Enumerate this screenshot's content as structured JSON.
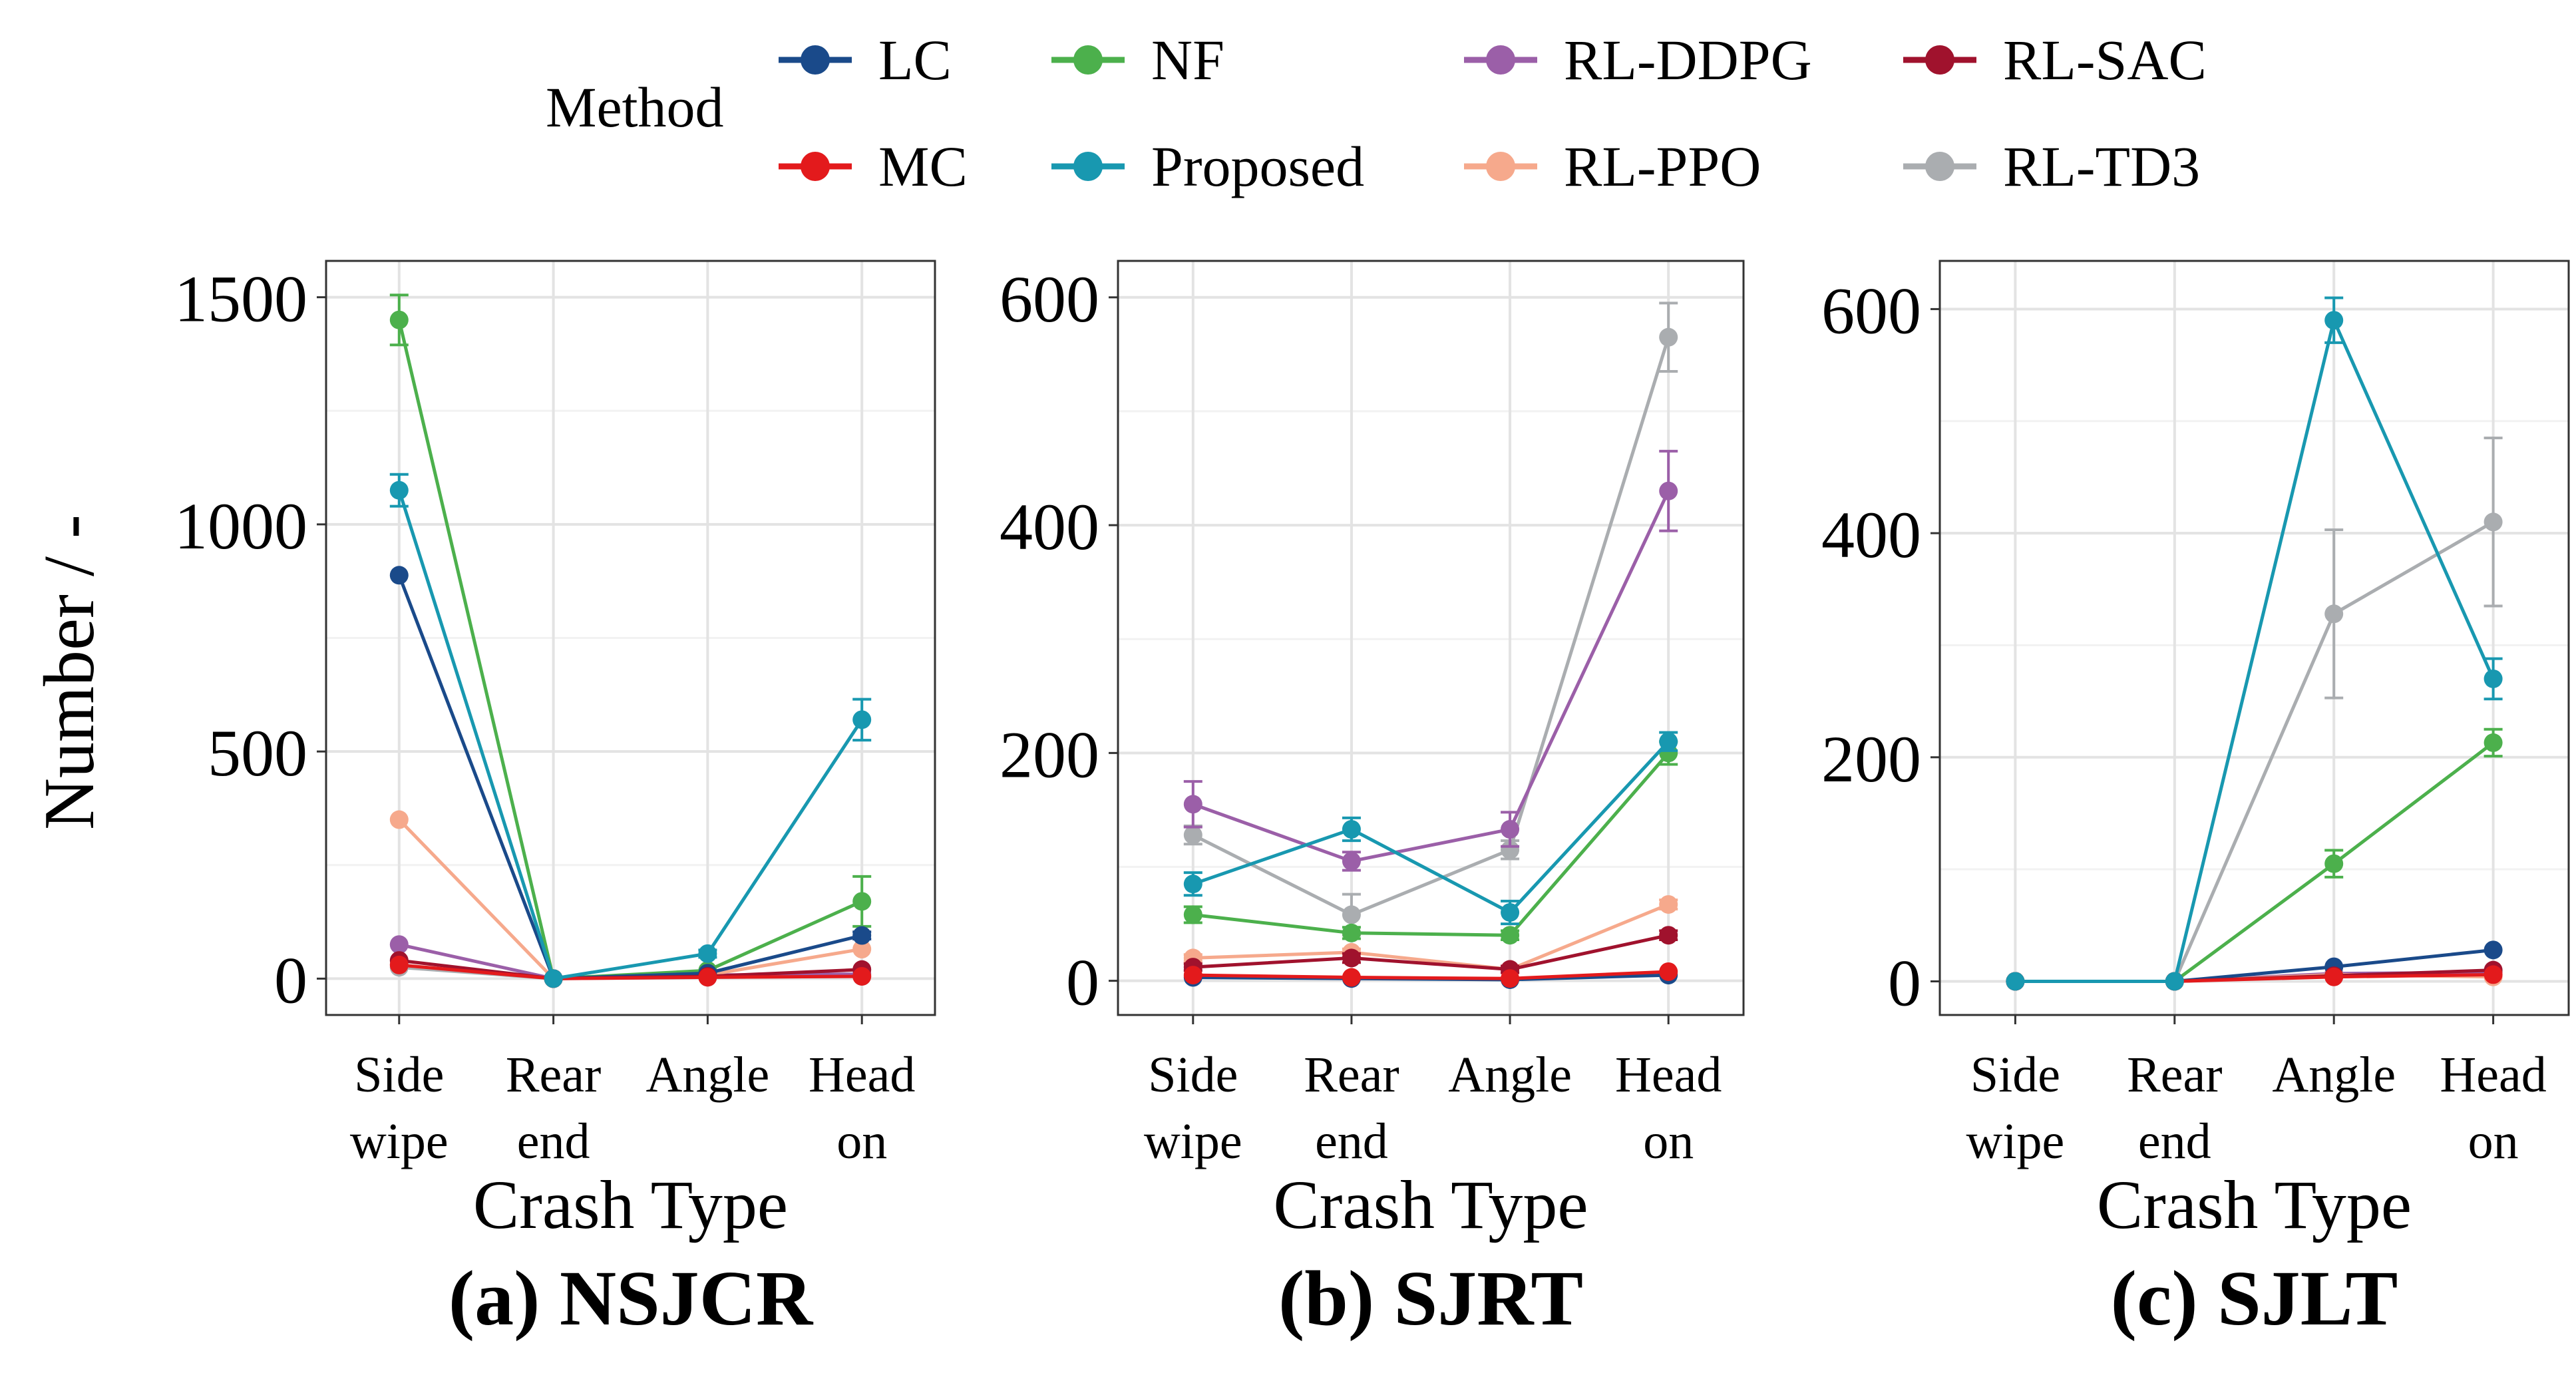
{
  "legend": {
    "title": "Method",
    "entries": [
      {
        "name": "LC",
        "color": "#1a4a8a"
      },
      {
        "name": "NF",
        "color": "#4cb04c"
      },
      {
        "name": "RL-DDPG",
        "color": "#9b5fa8"
      },
      {
        "name": "RL-SAC",
        "color": "#a0122d"
      },
      {
        "name": "MC",
        "color": "#e31a1c"
      },
      {
        "name": "Proposed",
        "color": "#1898b0"
      },
      {
        "name": "RL-PPO",
        "color": "#f6a98c"
      },
      {
        "name": "RL-TD3",
        "color": "#aaadb0"
      }
    ]
  },
  "y_axis_title": "Number / -",
  "chart_data": [
    {
      "type": "line",
      "title": "(a) NSJCR",
      "xlabel": "Crash Type",
      "ylabel": "Number / -",
      "categories": [
        "Side\nwipe",
        "Rear\nend",
        "Angle",
        "Head\non"
      ],
      "ylim": [
        -80,
        1580
      ],
      "yticks": [
        0,
        500,
        1000,
        1500
      ],
      "series": [
        {
          "name": "LC",
          "values": [
            888,
            0,
            12,
            95
          ],
          "errors": [
            0,
            0,
            0,
            8
          ]
        },
        {
          "name": "NF",
          "values": [
            1450,
            0,
            18,
            170
          ],
          "errors": [
            55,
            0,
            0,
            55
          ]
        },
        {
          "name": "RL-DDPG",
          "values": [
            75,
            0,
            8,
            10
          ],
          "errors": [
            0,
            0,
            0,
            0
          ]
        },
        {
          "name": "RL-SAC",
          "values": [
            40,
            0,
            5,
            20
          ],
          "errors": [
            0,
            0,
            0,
            0
          ]
        },
        {
          "name": "MC",
          "values": [
            30,
            0,
            3,
            5
          ],
          "errors": [
            0,
            0,
            0,
            0
          ]
        },
        {
          "name": "Proposed",
          "values": [
            1075,
            0,
            55,
            570
          ],
          "errors": [
            35,
            0,
            8,
            45
          ]
        },
        {
          "name": "RL-PPO",
          "values": [
            350,
            0,
            8,
            65
          ],
          "errors": [
            0,
            0,
            0,
            0
          ]
        },
        {
          "name": "RL-TD3",
          "values": [
            25,
            0,
            3,
            5
          ],
          "errors": [
            0,
            0,
            0,
            0
          ]
        }
      ]
    },
    {
      "type": "line",
      "title": "(b) SJRT",
      "xlabel": "Crash Type",
      "ylabel": "Number / -",
      "categories": [
        "Side\nwipe",
        "Rear\nend",
        "Angle",
        "Head\non"
      ],
      "ylim": [
        -30,
        632
      ],
      "yticks": [
        0,
        200,
        400,
        600
      ],
      "series": [
        {
          "name": "LC",
          "values": [
            3,
            2,
            1,
            5
          ],
          "errors": [
            0,
            0,
            0,
            0
          ]
        },
        {
          "name": "NF",
          "values": [
            58,
            42,
            40,
            200
          ],
          "errors": [
            7,
            5,
            4,
            10
          ]
        },
        {
          "name": "RL-DDPG",
          "values": [
            155,
            105,
            133,
            430
          ],
          "errors": [
            20,
            8,
            15,
            35
          ]
        },
        {
          "name": "RL-SAC",
          "values": [
            12,
            20,
            10,
            40
          ],
          "errors": [
            3,
            4,
            3,
            4
          ]
        },
        {
          "name": "MC",
          "values": [
            5,
            3,
            2,
            8
          ],
          "errors": [
            0,
            0,
            0,
            0
          ]
        },
        {
          "name": "Proposed",
          "values": [
            85,
            133,
            60,
            210
          ],
          "errors": [
            10,
            10,
            10,
            8
          ]
        },
        {
          "name": "RL-PPO",
          "values": [
            20,
            25,
            10,
            67
          ],
          "errors": [
            3,
            3,
            2,
            4
          ]
        },
        {
          "name": "RL-TD3",
          "values": [
            128,
            58,
            115,
            565
          ],
          "errors": [
            8,
            18,
            8,
            30
          ]
        }
      ]
    },
    {
      "type": "line",
      "title": "(c) SJLT",
      "xlabel": "Crash Type",
      "ylabel": "Number / -",
      "categories": [
        "Side\nwipe",
        "Rear\nend",
        "Angle",
        "Head\non"
      ],
      "ylim": [
        -30,
        643
      ],
      "yticks": [
        0,
        200,
        400,
        600
      ],
      "series": [
        {
          "name": "LC",
          "values": [
            0,
            0,
            13,
            28
          ],
          "errors": [
            0,
            0,
            0,
            0
          ]
        },
        {
          "name": "NF",
          "values": [
            0,
            0,
            105,
            213
          ],
          "errors": [
            0,
            0,
            12,
            12
          ]
        },
        {
          "name": "RL-DDPG",
          "values": [
            0,
            0,
            7,
            8
          ],
          "errors": [
            0,
            0,
            0,
            0
          ]
        },
        {
          "name": "RL-SAC",
          "values": [
            0,
            0,
            5,
            10
          ],
          "errors": [
            0,
            0,
            0,
            0
          ]
        },
        {
          "name": "MC",
          "values": [
            0,
            0,
            4,
            6
          ],
          "errors": [
            0,
            0,
            0,
            0
          ]
        },
        {
          "name": "Proposed",
          "values": [
            0,
            0,
            590,
            270
          ],
          "errors": [
            0,
            0,
            20,
            18
          ]
        },
        {
          "name": "RL-PPO",
          "values": [
            0,
            0,
            6,
            4
          ],
          "errors": [
            0,
            0,
            0,
            0
          ]
        },
        {
          "name": "RL-TD3",
          "values": [
            0,
            0,
            328,
            410
          ],
          "errors": [
            0,
            0,
            75,
            75
          ]
        }
      ]
    }
  ]
}
